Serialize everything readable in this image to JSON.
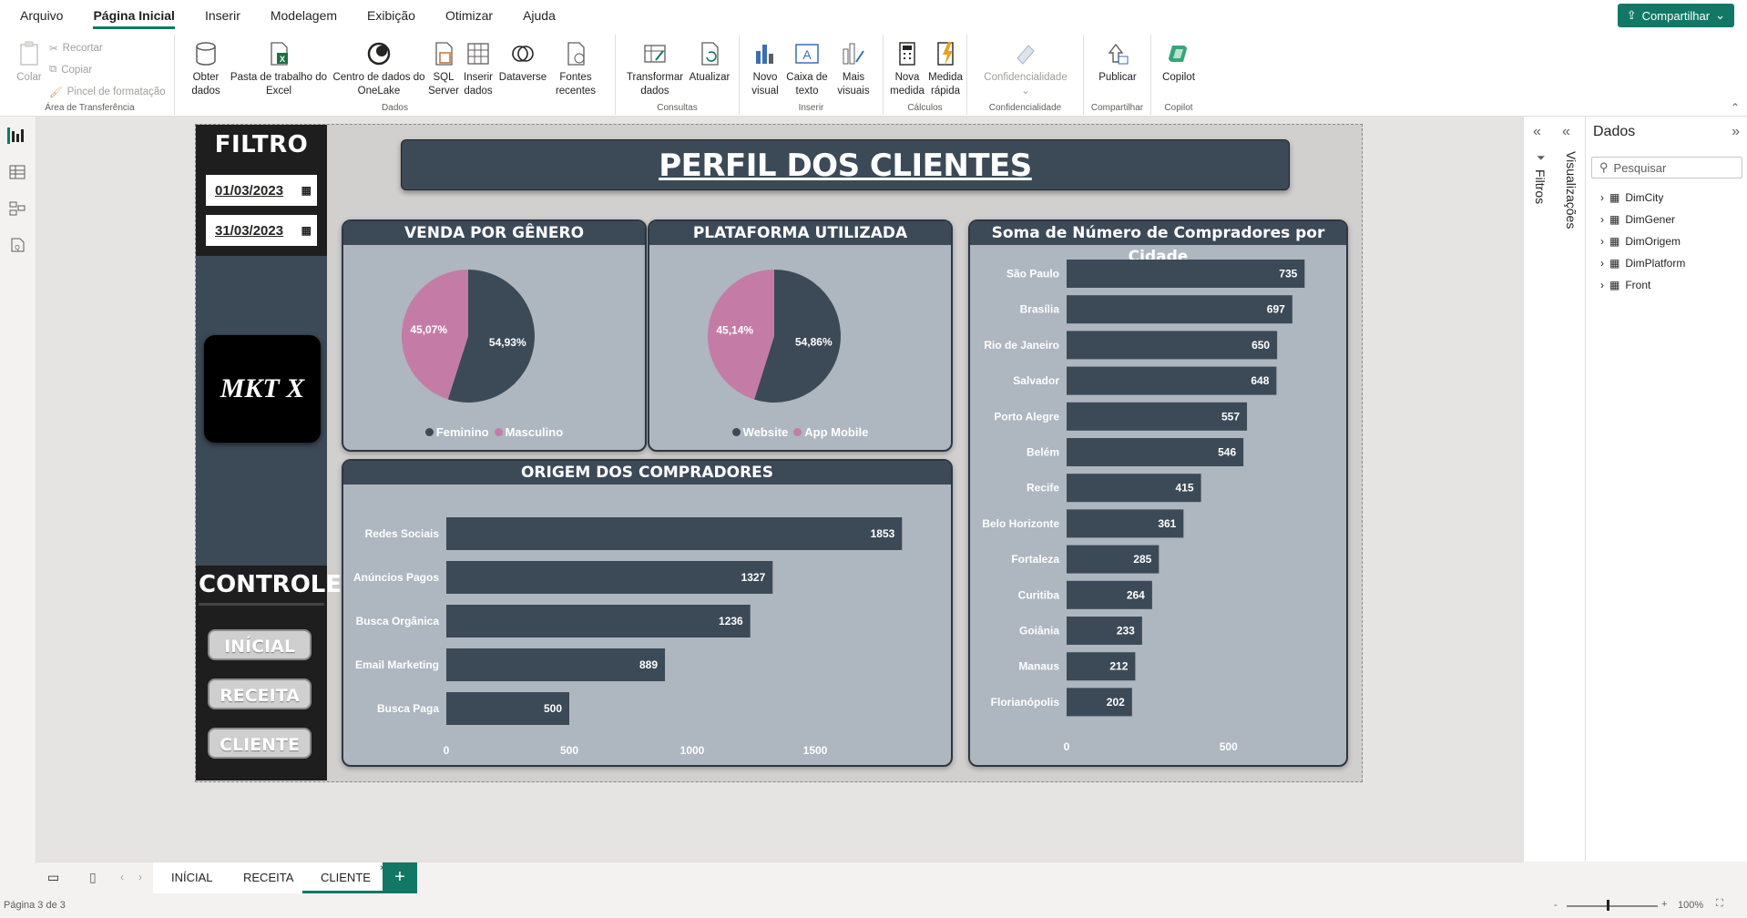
{
  "menu": {
    "items": [
      "Arquivo",
      "Página Inicial",
      "Inserir",
      "Modelagem",
      "Exibição",
      "Otimizar",
      "Ajuda"
    ],
    "share": "Compartilhar"
  },
  "ribbon": {
    "clipboard": {
      "paste": "Colar",
      "cut": "Recortar",
      "copy": "Copiar",
      "format_painter": "Pincel de formatação",
      "label": "Área de Transferência"
    },
    "data": {
      "get_data": "Obter\ndados",
      "excel": "Pasta de trabalho do\nExcel",
      "onelake": "Centro de dados do\nOneLake",
      "sql": "SQL\nServer",
      "insert": "Inserir\ndados",
      "dataverse": "Dataverse",
      "recent": "Fontes\nrecentes",
      "label": "Dados"
    },
    "queries": {
      "transform": "Transformar\ndados",
      "refresh": "Atualizar",
      "label": "Consultas"
    },
    "insert": {
      "new_visual": "Novo\nvisual",
      "textbox": "Caixa de\ntexto",
      "more": "Mais\nvisuais",
      "label": "Inserir"
    },
    "calc": {
      "new_measure": "Nova\nmedida",
      "quick": "Medida\nrápida",
      "label": "Cálculos"
    },
    "sensitivity": {
      "btn": "Confidencialidade",
      "label": "Confidencialidade"
    },
    "share": {
      "publish": "Publicar",
      "label": "Compartilhar"
    },
    "copilot": {
      "btn": "Copilot",
      "label": "Copilot"
    }
  },
  "report": {
    "filter_title": "FILTRO",
    "date_start": "01/03/2023",
    "date_end": "31/03/2023",
    "logo": "MKT X",
    "control_title": "CONTROLE",
    "nav": [
      "INÍCIAL",
      "RECEITA",
      "CLIENTE"
    ],
    "title": "PERFIL DOS CLIENTES",
    "gender_title": "VENDA POR GÊNERO",
    "platform_title": "PLATAFORMA UTILIZADA",
    "origin_title": "ORIGEM DOS COMPRADORES",
    "city_title": "Soma de Número de Compradores por Cidade"
  },
  "colors": {
    "dark": "#3c4a57",
    "pink": "#c47ca6",
    "card": "#aeb6bf"
  },
  "chart_data": [
    {
      "type": "pie",
      "title": "VENDA POR GÊNERO",
      "series": [
        {
          "name": "Feminino",
          "value": 54.93,
          "label": "54,93%"
        },
        {
          "name": "Masculino",
          "value": 45.07,
          "label": "45,07%"
        }
      ]
    },
    {
      "type": "pie",
      "title": "PLATAFORMA UTILIZADA",
      "series": [
        {
          "name": "Website",
          "value": 54.86,
          "label": "54,86%"
        },
        {
          "name": "App Mobile",
          "value": 45.14,
          "label": "45,14%"
        }
      ]
    },
    {
      "type": "bar",
      "title": "ORIGEM DOS COMPRADORES",
      "categories": [
        "Redes Sociais",
        "Anúncios Pagos",
        "Busca Orgânica",
        "Email Marketing",
        "Busca Paga"
      ],
      "values": [
        1853,
        1327,
        1236,
        889,
        500
      ],
      "xticks": [
        0,
        500,
        1000,
        1500
      ],
      "xlim": [
        0,
        2000
      ]
    },
    {
      "type": "bar",
      "title": "Soma de Número de Compradores por Cidade",
      "categories": [
        "São Paulo",
        "Brasília",
        "Rio de Janeiro",
        "Salvador",
        "Porto Alegre",
        "Belém",
        "Recife",
        "Belo Horizonte",
        "Fortaleza",
        "Curitiba",
        "Goiânia",
        "Manaus",
        "Florianópolis"
      ],
      "values": [
        735,
        697,
        650,
        648,
        557,
        546,
        415,
        361,
        285,
        264,
        233,
        212,
        202
      ],
      "xticks": [
        0,
        500
      ],
      "xlim": [
        0,
        900
      ]
    }
  ],
  "tabs": [
    "INÍCIAL",
    "RECEITA",
    "CLIENTE"
  ],
  "status": {
    "page": "Página 3 de 3",
    "zoom": "100%"
  },
  "panes": {
    "filters": "Filtros",
    "visualizations": "Visualizações",
    "data_title": "Dados",
    "search": "Pesquisar",
    "tables": [
      "DimCity",
      "DimGener",
      "DimOrigem",
      "DimPlatform",
      "Front"
    ]
  }
}
